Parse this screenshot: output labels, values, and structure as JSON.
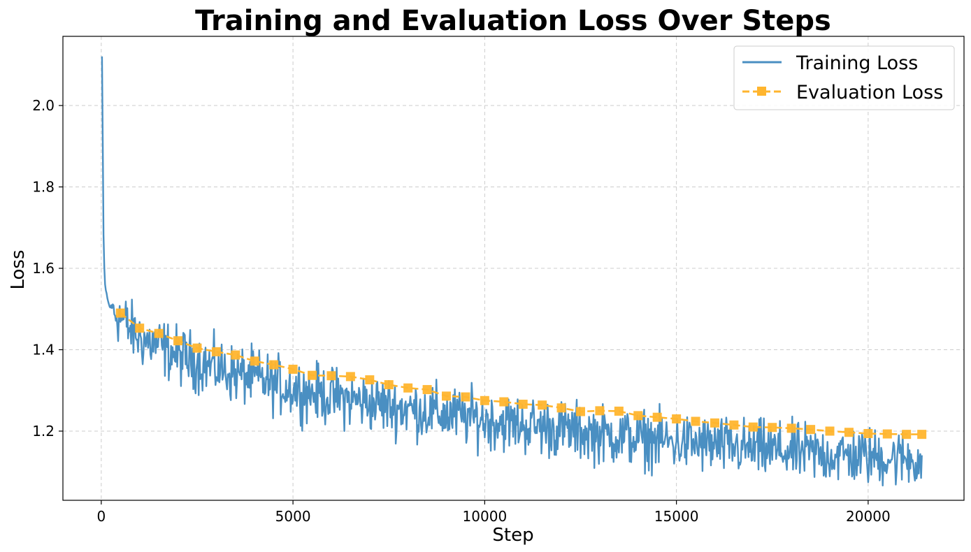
{
  "chart_data": {
    "type": "line",
    "title": "Training and Evaluation Loss Over Steps",
    "xlabel": "Step",
    "ylabel": "Loss",
    "xlim": [
      -1000,
      22500
    ],
    "ylim": [
      1.03,
      2.17
    ],
    "x_ticks": [
      0,
      5000,
      10000,
      15000,
      20000
    ],
    "y_ticks": [
      1.2,
      1.4,
      1.6,
      1.8,
      2.0
    ],
    "x_tick_labels": [
      "0",
      "5000",
      "10000",
      "15000",
      "20000"
    ],
    "y_tick_labels": [
      "1.2",
      "1.4",
      "1.6",
      "1.8",
      "2.0"
    ],
    "grid": true,
    "legend_position": "top-right",
    "colors": {
      "training": "#4a8fc2",
      "evaluation": "#ffb52e"
    },
    "series": [
      {
        "name": "Training Loss",
        "style": "solid",
        "x": [
          20,
          40,
          60,
          80,
          100,
          150,
          200,
          300,
          400,
          500,
          600,
          700,
          800,
          1000,
          1200,
          1500,
          1800,
          2000,
          2500,
          3000,
          3500,
          4000,
          4500,
          5000,
          5500,
          6000,
          6500,
          7000,
          7500,
          8000,
          8500,
          9000,
          9500,
          10000,
          10500,
          11000,
          11500,
          12000,
          12500,
          13000,
          13500,
          14000,
          14500,
          15000,
          15500,
          16000,
          16500,
          17000,
          17500,
          18000,
          18500,
          19000,
          19500,
          20000,
          20500,
          21000,
          21400
        ],
        "y": [
          2.12,
          1.9,
          1.68,
          1.6,
          1.56,
          1.53,
          1.51,
          1.5,
          1.49,
          1.48,
          1.47,
          1.455,
          1.445,
          1.43,
          1.42,
          1.41,
          1.395,
          1.385,
          1.37,
          1.355,
          1.34,
          1.33,
          1.315,
          1.305,
          1.295,
          1.285,
          1.278,
          1.27,
          1.262,
          1.255,
          1.248,
          1.24,
          1.235,
          1.228,
          1.222,
          1.215,
          1.21,
          1.204,
          1.198,
          1.192,
          1.187,
          1.182,
          1.177,
          1.172,
          1.168,
          1.164,
          1.16,
          1.156,
          1.152,
          1.148,
          1.145,
          1.142,
          1.139,
          1.137,
          1.135,
          1.133,
          1.13
        ],
        "noise_amplitude": 0.035
      },
      {
        "name": "Evaluation Loss",
        "style": "dashed",
        "marker": "square",
        "x": [
          500,
          1000,
          1500,
          2000,
          2500,
          3000,
          3500,
          4000,
          4500,
          5000,
          5500,
          6000,
          6500,
          7000,
          7500,
          8000,
          8500,
          9000,
          9500,
          10000,
          10500,
          11000,
          11500,
          12000,
          12500,
          13000,
          13500,
          14000,
          14500,
          15000,
          15500,
          16000,
          16500,
          17000,
          17500,
          18000,
          18500,
          19000,
          19500,
          20000,
          20500,
          21000,
          21400
        ],
        "y": [
          1.49,
          1.453,
          1.44,
          1.422,
          1.404,
          1.395,
          1.387,
          1.372,
          1.363,
          1.352,
          1.337,
          1.336,
          1.334,
          1.326,
          1.314,
          1.306,
          1.302,
          1.286,
          1.284,
          1.275,
          1.272,
          1.266,
          1.264,
          1.257,
          1.248,
          1.25,
          1.249,
          1.238,
          1.234,
          1.23,
          1.224,
          1.22,
          1.215,
          1.21,
          1.209,
          1.207,
          1.204,
          1.2,
          1.197,
          1.194,
          1.193,
          1.192,
          1.192
        ]
      }
    ]
  }
}
